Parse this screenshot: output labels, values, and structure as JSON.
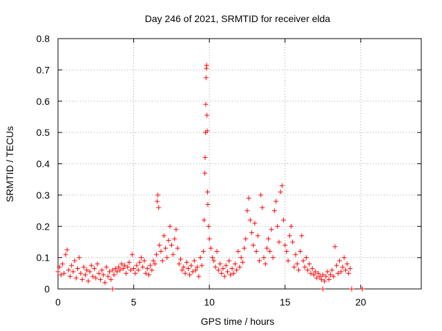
{
  "chart_data": {
    "type": "scatter",
    "title": "Day 246 of 2021, SRMTID for receiver elda",
    "xlabel": "GPS time / hours",
    "ylabel": "SRMTID / TECUs",
    "xlim": [
      0,
      24
    ],
    "ylim": [
      0,
      0.8
    ],
    "x_ticks": [
      0,
      5,
      10,
      15,
      20
    ],
    "x_tick_labels": [
      "0",
      "5",
      "10",
      "15",
      "20"
    ],
    "y_ticks": [
      0,
      0.1,
      0.2,
      0.3,
      0.4,
      0.5,
      0.6,
      0.7,
      0.8
    ],
    "y_tick_labels": [
      "0",
      "0.1",
      "0.2",
      "0.3",
      "0.4",
      "0.5",
      "0.6",
      "0.7",
      "0.8"
    ],
    "grid": true,
    "marker": "+",
    "color": "#ff0000",
    "series": [
      {
        "name": "SRMTID",
        "points": [
          [
            0.0,
            0.055
          ],
          [
            0.1,
            0.07
          ],
          [
            0.2,
            0.045
          ],
          [
            0.3,
            0.08
          ],
          [
            0.4,
            0.05
          ],
          [
            0.5,
            0.11
          ],
          [
            0.6,
            0.125
          ],
          [
            0.7,
            0.06
          ],
          [
            0.8,
            0.04
          ],
          [
            0.9,
            0.075
          ],
          [
            1.0,
            0.055
          ],
          [
            1.1,
            0.09
          ],
          [
            1.2,
            0.035
          ],
          [
            1.3,
            0.065
          ],
          [
            1.4,
            0.1
          ],
          [
            1.5,
            0.05
          ],
          [
            1.6,
            0.03
          ],
          [
            1.7,
            0.07
          ],
          [
            1.8,
            0.045
          ],
          [
            1.9,
            0.06
          ],
          [
            2.0,
            0.025
          ],
          [
            2.1,
            0.055
          ],
          [
            2.2,
            0.075
          ],
          [
            2.3,
            0.04
          ],
          [
            2.4,
            0.065
          ],
          [
            2.5,
            0.035
          ],
          [
            2.6,
            0.08
          ],
          [
            2.7,
            0.05
          ],
          [
            2.8,
            0.03
          ],
          [
            2.9,
            0.06
          ],
          [
            3.0,
            0.045
          ],
          [
            3.1,
            0.02
          ],
          [
            3.2,
            0.07
          ],
          [
            3.3,
            0.04
          ],
          [
            3.4,
            0.055
          ],
          [
            3.5,
            0.03
          ],
          [
            3.6,
            0.06
          ],
          [
            3.7,
            0.045
          ],
          [
            3.8,
            0.065
          ],
          [
            3.9,
            0.055
          ],
          [
            4.0,
            0.07
          ],
          [
            4.1,
            0.06
          ],
          [
            4.2,
            0.08
          ],
          [
            4.3,
            0.065
          ],
          [
            4.4,
            0.075
          ],
          [
            4.5,
            0.05
          ],
          [
            4.6,
            0.07
          ],
          [
            4.7,
            0.085
          ],
          [
            4.8,
            0.06
          ],
          [
            4.9,
            0.11
          ],
          [
            5.0,
            0.065
          ],
          [
            5.1,
            0.05
          ],
          [
            5.2,
            0.075
          ],
          [
            5.3,
            0.06
          ],
          [
            5.4,
            0.085
          ],
          [
            5.5,
            0.1
          ],
          [
            5.6,
            0.07
          ],
          [
            5.7,
            0.09
          ],
          [
            5.8,
            0.05
          ],
          [
            5.9,
            0.065
          ],
          [
            6.0,
            0.045
          ],
          [
            6.1,
            0.075
          ],
          [
            6.2,
            0.06
          ],
          [
            6.3,
            0.09
          ],
          [
            6.4,
            0.08
          ],
          [
            6.5,
            0.11
          ],
          [
            6.55,
            0.28
          ],
          [
            6.6,
            0.3
          ],
          [
            6.65,
            0.26
          ],
          [
            6.7,
            0.14
          ],
          [
            6.8,
            0.12
          ],
          [
            6.9,
            0.09
          ],
          [
            7.0,
            0.17
          ],
          [
            7.1,
            0.13
          ],
          [
            7.2,
            0.1
          ],
          [
            7.3,
            0.155
          ],
          [
            7.4,
            0.2
          ],
          [
            7.5,
            0.14
          ],
          [
            7.6,
            0.11
          ],
          [
            7.7,
            0.16
          ],
          [
            7.8,
            0.19
          ],
          [
            7.9,
            0.13
          ],
          [
            8.0,
            0.08
          ],
          [
            8.1,
            0.095
          ],
          [
            8.2,
            0.06
          ],
          [
            8.3,
            0.07
          ],
          [
            8.4,
            0.05
          ],
          [
            8.5,
            0.085
          ],
          [
            8.6,
            0.065
          ],
          [
            8.7,
            0.045
          ],
          [
            8.8,
            0.075
          ],
          [
            8.9,
            0.055
          ],
          [
            9.0,
            0.09
          ],
          [
            9.1,
            0.06
          ],
          [
            9.2,
            0.07
          ],
          [
            9.3,
            0.04
          ],
          [
            9.4,
            0.1
          ],
          [
            9.5,
            0.075
          ],
          [
            9.6,
            0.12
          ],
          [
            9.65,
            0.22
          ],
          [
            9.7,
            0.37
          ],
          [
            9.72,
            0.42
          ],
          [
            9.74,
            0.5
          ],
          [
            9.76,
            0.59
          ],
          [
            9.78,
            0.675
          ],
          [
            9.8,
            0.705
          ],
          [
            9.82,
            0.715
          ],
          [
            9.84,
            0.555
          ],
          [
            9.86,
            0.505
          ],
          [
            9.88,
            0.31
          ],
          [
            9.9,
            0.27
          ],
          [
            9.95,
            0.2
          ],
          [
            10.0,
            0.16
          ],
          [
            10.1,
            0.13
          ],
          [
            10.2,
            0.1
          ],
          [
            10.3,
            0.09
          ],
          [
            10.4,
            0.07
          ],
          [
            10.5,
            0.12
          ],
          [
            10.6,
            0.06
          ],
          [
            10.7,
            0.08
          ],
          [
            10.8,
            0.05
          ],
          [
            10.9,
            0.065
          ],
          [
            11.0,
            0.04
          ],
          [
            11.1,
            0.075
          ],
          [
            11.2,
            0.055
          ],
          [
            11.3,
            0.09
          ],
          [
            11.4,
            0.045
          ],
          [
            11.5,
            0.065
          ],
          [
            11.6,
            0.05
          ],
          [
            11.7,
            0.08
          ],
          [
            11.8,
            0.06
          ],
          [
            11.9,
            0.12
          ],
          [
            12.0,
            0.07
          ],
          [
            12.1,
            0.1
          ],
          [
            12.2,
            0.085
          ],
          [
            12.3,
            0.13
          ],
          [
            12.4,
            0.16
          ],
          [
            12.5,
            0.25
          ],
          [
            12.6,
            0.29
          ],
          [
            12.7,
            0.22
          ],
          [
            12.8,
            0.18
          ],
          [
            12.9,
            0.14
          ],
          [
            13.0,
            0.21
          ],
          [
            13.1,
            0.12
          ],
          [
            13.2,
            0.17
          ],
          [
            13.3,
            0.09
          ],
          [
            13.4,
            0.3
          ],
          [
            13.5,
            0.26
          ],
          [
            13.6,
            0.1
          ],
          [
            13.7,
            0.08
          ],
          [
            13.8,
            0.13
          ],
          [
            13.9,
            0.16
          ],
          [
            14.0,
            0.12
          ],
          [
            14.1,
            0.19
          ],
          [
            14.2,
            0.1
          ],
          [
            14.3,
            0.25
          ],
          [
            14.4,
            0.28
          ],
          [
            14.5,
            0.2
          ],
          [
            14.6,
            0.15
          ],
          [
            14.7,
            0.31
          ],
          [
            14.8,
            0.33
          ],
          [
            14.9,
            0.22
          ],
          [
            15.0,
            0.14
          ],
          [
            15.1,
            0.12
          ],
          [
            15.2,
            0.09
          ],
          [
            15.3,
            0.17
          ],
          [
            15.4,
            0.2
          ],
          [
            15.5,
            0.15
          ],
          [
            15.6,
            0.07
          ],
          [
            15.7,
            0.11
          ],
          [
            15.8,
            0.08
          ],
          [
            15.9,
            0.06
          ],
          [
            16.0,
            0.12
          ],
          [
            16.1,
            0.17
          ],
          [
            16.2,
            0.09
          ],
          [
            16.3,
            0.07
          ],
          [
            16.4,
            0.1
          ],
          [
            16.5,
            0.06
          ],
          [
            16.6,
            0.08
          ],
          [
            16.7,
            0.05
          ],
          [
            16.8,
            0.065
          ],
          [
            16.9,
            0.045
          ],
          [
            17.0,
            0.055
          ],
          [
            17.1,
            0.035
          ],
          [
            17.2,
            0.05
          ],
          [
            17.3,
            0.04
          ],
          [
            17.4,
            0.03
          ],
          [
            17.5,
            0.045
          ],
          [
            17.6,
            0.025
          ],
          [
            17.7,
            0.04
          ],
          [
            17.8,
            0.055
          ],
          [
            17.9,
            0.03
          ],
          [
            18.0,
            0.045
          ],
          [
            18.1,
            0.06
          ],
          [
            18.2,
            0.04
          ],
          [
            18.3,
            0.135
          ],
          [
            18.4,
            0.075
          ],
          [
            18.5,
            0.05
          ],
          [
            18.6,
            0.09
          ],
          [
            18.7,
            0.055
          ],
          [
            18.8,
            0.07
          ],
          [
            18.9,
            0.1
          ],
          [
            19.0,
            0.06
          ],
          [
            19.1,
            0.08
          ],
          [
            19.2,
            0.05
          ],
          [
            19.3,
            0.065
          ],
          [
            3.6,
            0.0
          ],
          [
            17.5,
            0.0
          ],
          [
            19.4,
            0.0
          ],
          [
            20.1,
            0.0
          ]
        ]
      }
    ]
  }
}
